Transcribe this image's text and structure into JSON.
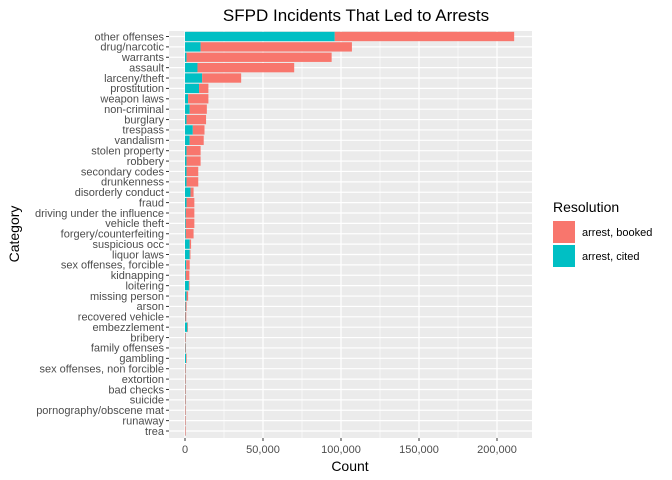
{
  "chart_data": {
    "type": "bar",
    "orientation": "horizontal",
    "stacked": true,
    "title": "SFPD Incidents That Led to Arrests",
    "xlabel": "Count",
    "ylabel": "Category",
    "xlim": [
      -18000,
      222000
    ],
    "xticks": [
      0,
      50000,
      100000,
      150000,
      200000
    ],
    "xtick_labels": [
      "0",
      "50,000",
      "100,000",
      "150,000",
      "200,000"
    ],
    "grid": true,
    "legend_position": "right",
    "legend_title": "Resolution",
    "categories": [
      "other offenses",
      "drug/narcotic",
      "warrants",
      "assault",
      "larceny/theft",
      "prostitution",
      "weapon laws",
      "non-criminal",
      "burglary",
      "trespass",
      "vandalism",
      "stolen property",
      "robbery",
      "secondary codes",
      "drunkenness",
      "disorderly conduct",
      "fraud",
      "driving under the influence",
      "vehicle theft",
      "forgery/counterfeiting",
      "suspicious occ",
      "liquor laws",
      "sex offenses, forcible",
      "kidnapping",
      "loitering",
      "missing person",
      "arson",
      "recovered vehicle",
      "embezzlement",
      "bribery",
      "family offenses",
      "gambling",
      "sex offenses, non forcible",
      "extortion",
      "bad checks",
      "suicide",
      "pornography/obscene mat",
      "runaway",
      "trea"
    ],
    "series": [
      {
        "name": "arrest, cited",
        "color": "#00BFC4",
        "values": [
          96000,
          10000,
          1000,
          8000,
          11000,
          9000,
          2000,
          3000,
          1000,
          5000,
          3000,
          1000,
          1000,
          1000,
          1000,
          3500,
          1000,
          500,
          500,
          500,
          3000,
          3000,
          800,
          500,
          2500,
          1000,
          300,
          200,
          1500,
          100,
          200,
          700,
          100,
          100,
          100,
          100,
          50,
          30,
          5
        ]
      },
      {
        "name": "arrest, booked",
        "color": "#F8766D",
        "values": [
          115000,
          97000,
          93000,
          62000,
          25000,
          6000,
          13000,
          11000,
          12500,
          7500,
          9000,
          9000,
          9000,
          7500,
          7500,
          2000,
          5000,
          5500,
          5500,
          5000,
          900,
          500,
          2200,
          2300,
          200,
          1000,
          700,
          600,
          200,
          400,
          300,
          100,
          350,
          250,
          200,
          150,
          60,
          40,
          10
        ]
      }
    ]
  }
}
